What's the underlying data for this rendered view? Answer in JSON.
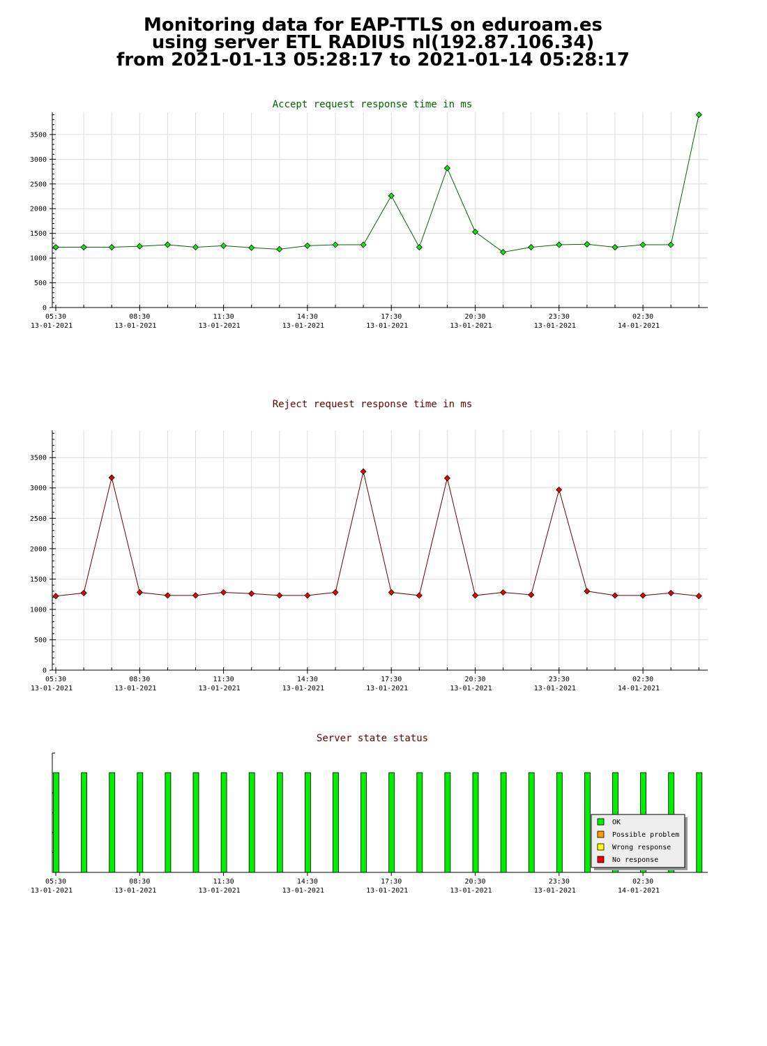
{
  "title_lines": [
    "Monitoring data for EAP-TTLS on eduroam.es",
    "using server ETL RADIUS nl(192.87.106.34)",
    "from 2021-01-13 05:28:17 to 2021-01-14 05:28:17"
  ],
  "colors": {
    "accept_line": "#006600",
    "accept_marker": "#00ee00",
    "reject_line": "#660000",
    "reject_marker": "#ee0000",
    "accept_title": "#006600",
    "reject_title": "#660000",
    "status_title": "#660000",
    "grid": "#dddddd",
    "ok": "#00ee00",
    "possible_problem": "#ff9900",
    "wrong_response": "#ffff00",
    "no_response": "#ee0000"
  },
  "x_ticks": [
    {
      "time": "05:30",
      "date": "13-01-2021"
    },
    {
      "time": "08:30",
      "date": "13-01-2021"
    },
    {
      "time": "11:30",
      "date": "13-01-2021"
    },
    {
      "time": "14:30",
      "date": "13-01-2021"
    },
    {
      "time": "17:30",
      "date": "13-01-2021"
    },
    {
      "time": "20:30",
      "date": "13-01-2021"
    },
    {
      "time": "23:30",
      "date": "13-01-2021"
    },
    {
      "time": "02:30",
      "date": "14-01-2021"
    }
  ],
  "chart_data": [
    {
      "type": "line",
      "title": "Accept request response time in ms",
      "ylim": [
        0,
        3950
      ],
      "yticks": [
        0,
        500,
        1000,
        1500,
        2000,
        2500,
        3000,
        3500
      ],
      "grid": true,
      "x": [
        "05:30",
        "06:30",
        "07:30",
        "08:30",
        "09:30",
        "10:30",
        "11:30",
        "12:30",
        "13:30",
        "14:30",
        "15:30",
        "16:30",
        "17:30",
        "18:30",
        "19:30",
        "20:30",
        "21:30",
        "22:30",
        "23:30",
        "00:30",
        "01:30",
        "02:30",
        "03:30",
        "04:30"
      ],
      "values": [
        1220,
        1220,
        1220,
        1240,
        1270,
        1220,
        1250,
        1210,
        1180,
        1250,
        1270,
        1270,
        2260,
        1220,
        2820,
        1530,
        1120,
        1220,
        1270,
        1280,
        1220,
        1270,
        1270,
        3900
      ]
    },
    {
      "type": "line",
      "title": "Reject request response time in ms",
      "ylim": [
        0,
        3950
      ],
      "yticks": [
        0,
        500,
        1000,
        1500,
        2000,
        2500,
        3000,
        3500
      ],
      "grid": true,
      "x": [
        "05:30",
        "06:30",
        "07:30",
        "08:30",
        "09:30",
        "10:30",
        "11:30",
        "12:30",
        "13:30",
        "14:30",
        "15:30",
        "16:30",
        "17:30",
        "18:30",
        "19:30",
        "20:30",
        "21:30",
        "22:30",
        "23:30",
        "00:30",
        "01:30",
        "02:30",
        "03:30",
        "04:30"
      ],
      "values": [
        1220,
        1270,
        3170,
        1280,
        1230,
        1230,
        1280,
        1260,
        1230,
        1230,
        1280,
        3270,
        1280,
        1230,
        3160,
        1230,
        1280,
        1240,
        2970,
        1300,
        1230,
        1230,
        1270,
        1220
      ]
    },
    {
      "type": "bar",
      "title": "Server state status",
      "x": [
        "05:30",
        "06:30",
        "07:30",
        "08:30",
        "09:30",
        "10:30",
        "11:30",
        "12:30",
        "13:30",
        "14:30",
        "15:30",
        "16:30",
        "17:30",
        "18:30",
        "19:30",
        "20:30",
        "21:30",
        "22:30",
        "23:30",
        "00:30",
        "01:30",
        "02:30",
        "03:30",
        "04:30"
      ],
      "status": [
        "OK",
        "OK",
        "OK",
        "OK",
        "OK",
        "OK",
        "OK",
        "OK",
        "OK",
        "OK",
        "OK",
        "OK",
        "OK",
        "OK",
        "OK",
        "OK",
        "OK",
        "OK",
        "OK",
        "OK",
        "OK",
        "OK",
        "OK",
        "OK"
      ],
      "legend": [
        "OK",
        "Possible problem",
        "Wrong response",
        "No response"
      ],
      "legend_position": "bottom-right"
    }
  ]
}
